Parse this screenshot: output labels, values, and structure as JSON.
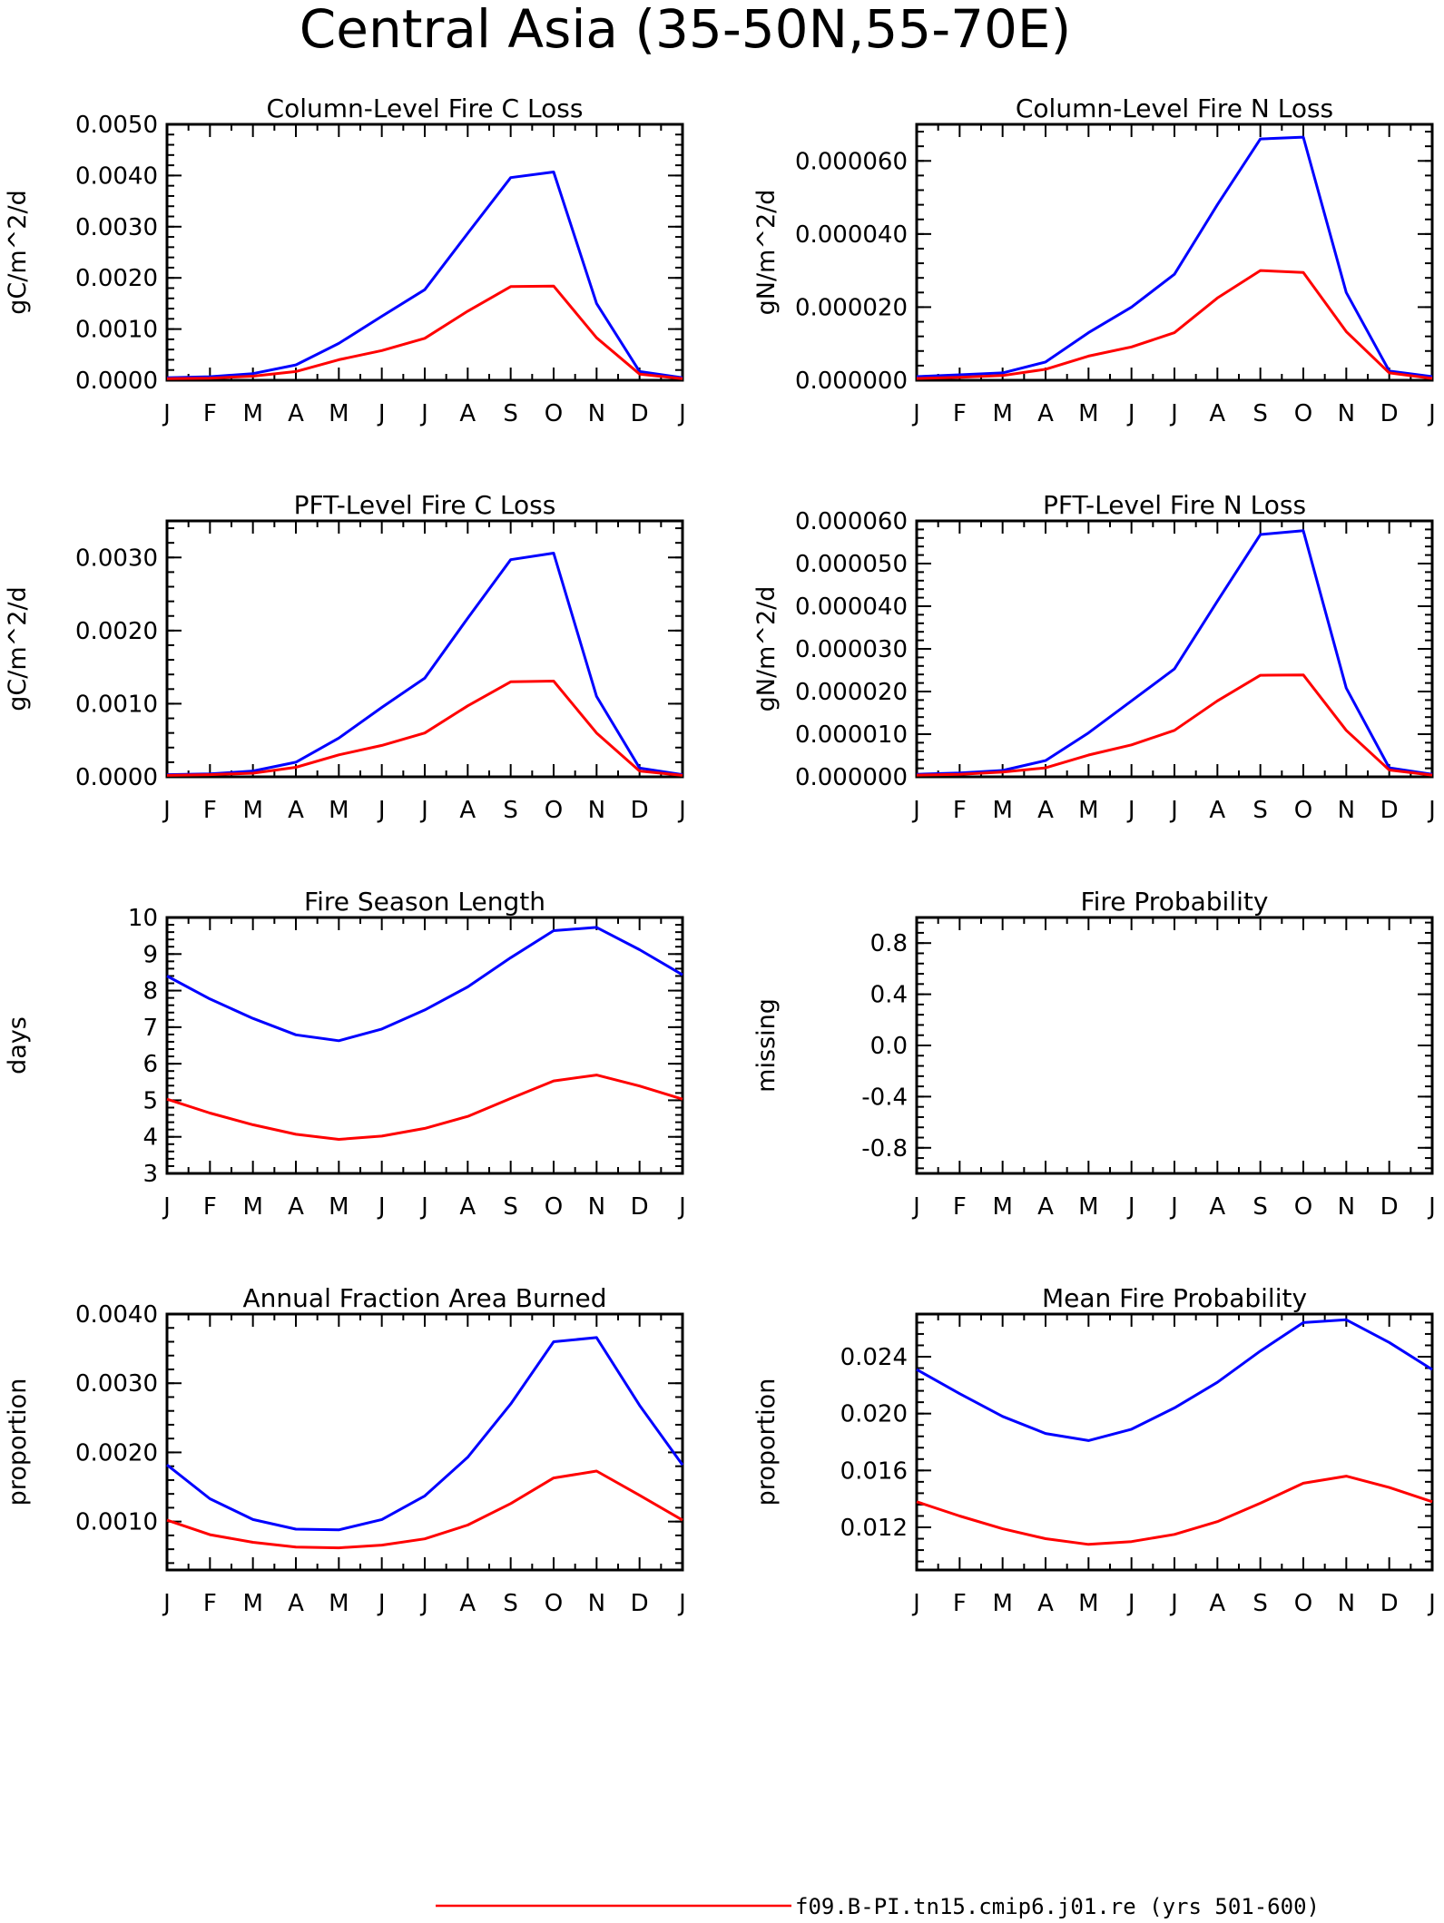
{
  "title": "Central Asia (35-50N,55-70E)",
  "legend": [
    {
      "label": "f09.B-PI.tn15.cmip6.j01.re (yrs 501-600)",
      "color": "#ff0000"
    }
  ],
  "series_colors": [
    "#0000ff",
    "#ff0000"
  ],
  "chart_data": [
    {
      "type": "line",
      "title": "Column-Level Fire C Loss",
      "ylabel": "gC/m^2/d",
      "categories": [
        "J",
        "F",
        "M",
        "A",
        "M",
        "J",
        "J",
        "A",
        "S",
        "O",
        "N",
        "D",
        "J"
      ],
      "ylim": [
        0,
        0.005
      ],
      "yticks": [
        0,
        0.001,
        0.002,
        0.003,
        0.004,
        0.005
      ],
      "ytick_labels": [
        "0.0000",
        "0.0010",
        "0.0020",
        "0.0030",
        "0.0040",
        "0.0050"
      ],
      "series": [
        {
          "values": [
            5e-05,
            7e-05,
            0.00013,
            0.0003,
            0.00072,
            0.00125,
            0.00177,
            0.00287,
            0.00396,
            0.00407,
            0.0015,
            0.00017,
            5e-05
          ]
        },
        {
          "values": [
            3e-05,
            4e-05,
            8e-05,
            0.00017,
            0.0004,
            0.00058,
            0.00082,
            0.00135,
            0.00183,
            0.00184,
            0.00083,
            0.00012,
            3e-05
          ]
        }
      ]
    },
    {
      "type": "line",
      "title": "Column-Level Fire N Loss",
      "ylabel": "gN/m^2/d",
      "categories": [
        "J",
        "F",
        "M",
        "A",
        "M",
        "J",
        "J",
        "A",
        "S",
        "O",
        "N",
        "D",
        "J"
      ],
      "ylim": [
        0,
        7e-05
      ],
      "yticks": [
        0,
        2e-05,
        4e-05,
        6e-05
      ],
      "ytick_labels": [
        "0.000000",
        "0.000020",
        "0.000040",
        "0.000060"
      ],
      "series": [
        {
          "values": [
            1e-06,
            1.5e-06,
            2e-06,
            5e-06,
            1.3e-05,
            2e-05,
            2.9e-05,
            4.8e-05,
            6.6e-05,
            6.65e-05,
            2.4e-05,
            2.5e-06,
            1e-06
          ]
        },
        {
          "values": [
            5e-07,
            8e-07,
            1.3e-06,
            3e-06,
            6.6e-06,
            9.1e-06,
            1.3e-05,
            2.25e-05,
            3e-05,
            2.95e-05,
            1.33e-05,
            2e-06,
            5e-07
          ]
        }
      ]
    },
    {
      "type": "line",
      "title": "PFT-Level Fire C Loss",
      "ylabel": "gC/m^2/d",
      "categories": [
        "J",
        "F",
        "M",
        "A",
        "M",
        "J",
        "J",
        "A",
        "S",
        "O",
        "N",
        "D",
        "J"
      ],
      "ylim": [
        0,
        0.0035
      ],
      "yticks": [
        0,
        0.001,
        0.002,
        0.003
      ],
      "ytick_labels": [
        "0.0000",
        "0.0010",
        "0.0020",
        "0.0030"
      ],
      "series": [
        {
          "values": [
            3e-05,
            4e-05,
            8e-05,
            0.0002,
            0.00053,
            0.00095,
            0.00135,
            0.00217,
            0.00297,
            0.00306,
            0.0011,
            0.00012,
            3e-05
          ]
        },
        {
          "values": [
            2e-05,
            3e-05,
            5e-05,
            0.00013,
            0.0003,
            0.00043,
            0.0006,
            0.00097,
            0.0013,
            0.00131,
            0.0006,
            8e-05,
            2e-05
          ]
        }
      ]
    },
    {
      "type": "line",
      "title": "PFT-Level Fire N Loss",
      "ylabel": "gN/m^2/d",
      "categories": [
        "J",
        "F",
        "M",
        "A",
        "M",
        "J",
        "J",
        "A",
        "S",
        "O",
        "N",
        "D",
        "J"
      ],
      "ylim": [
        0,
        6e-05
      ],
      "yticks": [
        0,
        1e-05,
        2e-05,
        3e-05,
        4e-05,
        5e-05,
        6e-05
      ],
      "ytick_labels": [
        "0.000000",
        "0.000010",
        "0.000020",
        "0.000030",
        "0.000040",
        "0.000050",
        "0.000060"
      ],
      "series": [
        {
          "values": [
            6e-07,
            9e-07,
            1.5e-06,
            3.8e-06,
            1.03e-05,
            1.78e-05,
            2.53e-05,
            4.12e-05,
            5.68e-05,
            5.77e-05,
            2.08e-05,
            2.1e-06,
            6e-07
          ]
        },
        {
          "values": [
            4e-07,
            6e-07,
            1.1e-06,
            2.1e-06,
            5.1e-06,
            7.5e-06,
            1.09e-05,
            1.78e-05,
            2.38e-05,
            2.39e-05,
            1.09e-05,
            1.6e-06,
            4e-07
          ]
        }
      ]
    },
    {
      "type": "line",
      "title": "Fire Season Length",
      "ylabel": "days",
      "categories": [
        "J",
        "F",
        "M",
        "A",
        "M",
        "J",
        "J",
        "A",
        "S",
        "O",
        "N",
        "D",
        "J"
      ],
      "ylim": [
        3,
        10
      ],
      "yticks": [
        3,
        4,
        5,
        6,
        7,
        8,
        9,
        10
      ],
      "ytick_labels": [
        "3",
        "4",
        "5",
        "6",
        "7",
        "8",
        "9",
        "10"
      ],
      "series": [
        {
          "values": [
            8.4,
            7.77,
            7.24,
            6.79,
            6.63,
            6.95,
            7.47,
            8.1,
            8.9,
            9.64,
            9.73,
            9.12,
            8.43
          ]
        },
        {
          "values": [
            5.03,
            4.65,
            4.33,
            4.07,
            3.93,
            4.02,
            4.23,
            4.56,
            5.05,
            5.53,
            5.69,
            5.39,
            5.03
          ]
        }
      ]
    },
    {
      "type": "line",
      "title": "Fire Probability",
      "ylabel": "missing",
      "categories": [
        "J",
        "F",
        "M",
        "A",
        "M",
        "J",
        "J",
        "A",
        "S",
        "O",
        "N",
        "D",
        "J"
      ],
      "ylim": [
        -1,
        1
      ],
      "yticks": [
        -0.8,
        -0.4,
        0,
        0.4,
        0.8
      ],
      "ytick_labels": [
        "-0.8",
        "-0.4",
        "0.0",
        "0.4",
        "0.8"
      ],
      "series": []
    },
    {
      "type": "line",
      "title": "Annual Fraction Area Burned",
      "ylabel": "proportion",
      "categories": [
        "J",
        "F",
        "M",
        "A",
        "M",
        "J",
        "J",
        "A",
        "S",
        "O",
        "N",
        "D",
        "J"
      ],
      "ylim": [
        0.0003,
        0.004
      ],
      "yticks": [
        0.001,
        0.002,
        0.003,
        0.004
      ],
      "ytick_labels": [
        "0.0010",
        "0.0020",
        "0.0030",
        "0.0040"
      ],
      "series": [
        {
          "values": [
            0.00182,
            0.00133,
            0.00103,
            0.00089,
            0.00088,
            0.00103,
            0.00137,
            0.00193,
            0.0027,
            0.0036,
            0.00366,
            0.00268,
            0.00182
          ]
        },
        {
          "values": [
            0.00102,
            0.00081,
            0.0007,
            0.00063,
            0.00062,
            0.00066,
            0.00075,
            0.00095,
            0.00126,
            0.00163,
            0.00173,
            0.00138,
            0.00102
          ]
        }
      ]
    },
    {
      "type": "line",
      "title": "Mean Fire Probability",
      "ylabel": "proportion",
      "categories": [
        "J",
        "F",
        "M",
        "A",
        "M",
        "J",
        "J",
        "A",
        "S",
        "O",
        "N",
        "D",
        "J"
      ],
      "ylim": [
        0.009,
        0.027
      ],
      "yticks": [
        0.012,
        0.016,
        0.02,
        0.024
      ],
      "ytick_labels": [
        "0.012",
        "0.016",
        "0.020",
        "0.024"
      ],
      "series": [
        {
          "values": [
            0.0231,
            0.0214,
            0.0198,
            0.0186,
            0.0181,
            0.0189,
            0.0204,
            0.0222,
            0.0244,
            0.0264,
            0.0266,
            0.025,
            0.0231
          ]
        },
        {
          "values": [
            0.0138,
            0.0128,
            0.0119,
            0.0112,
            0.0108,
            0.011,
            0.0115,
            0.0124,
            0.0137,
            0.0151,
            0.0156,
            0.0148,
            0.0138
          ]
        }
      ]
    }
  ]
}
